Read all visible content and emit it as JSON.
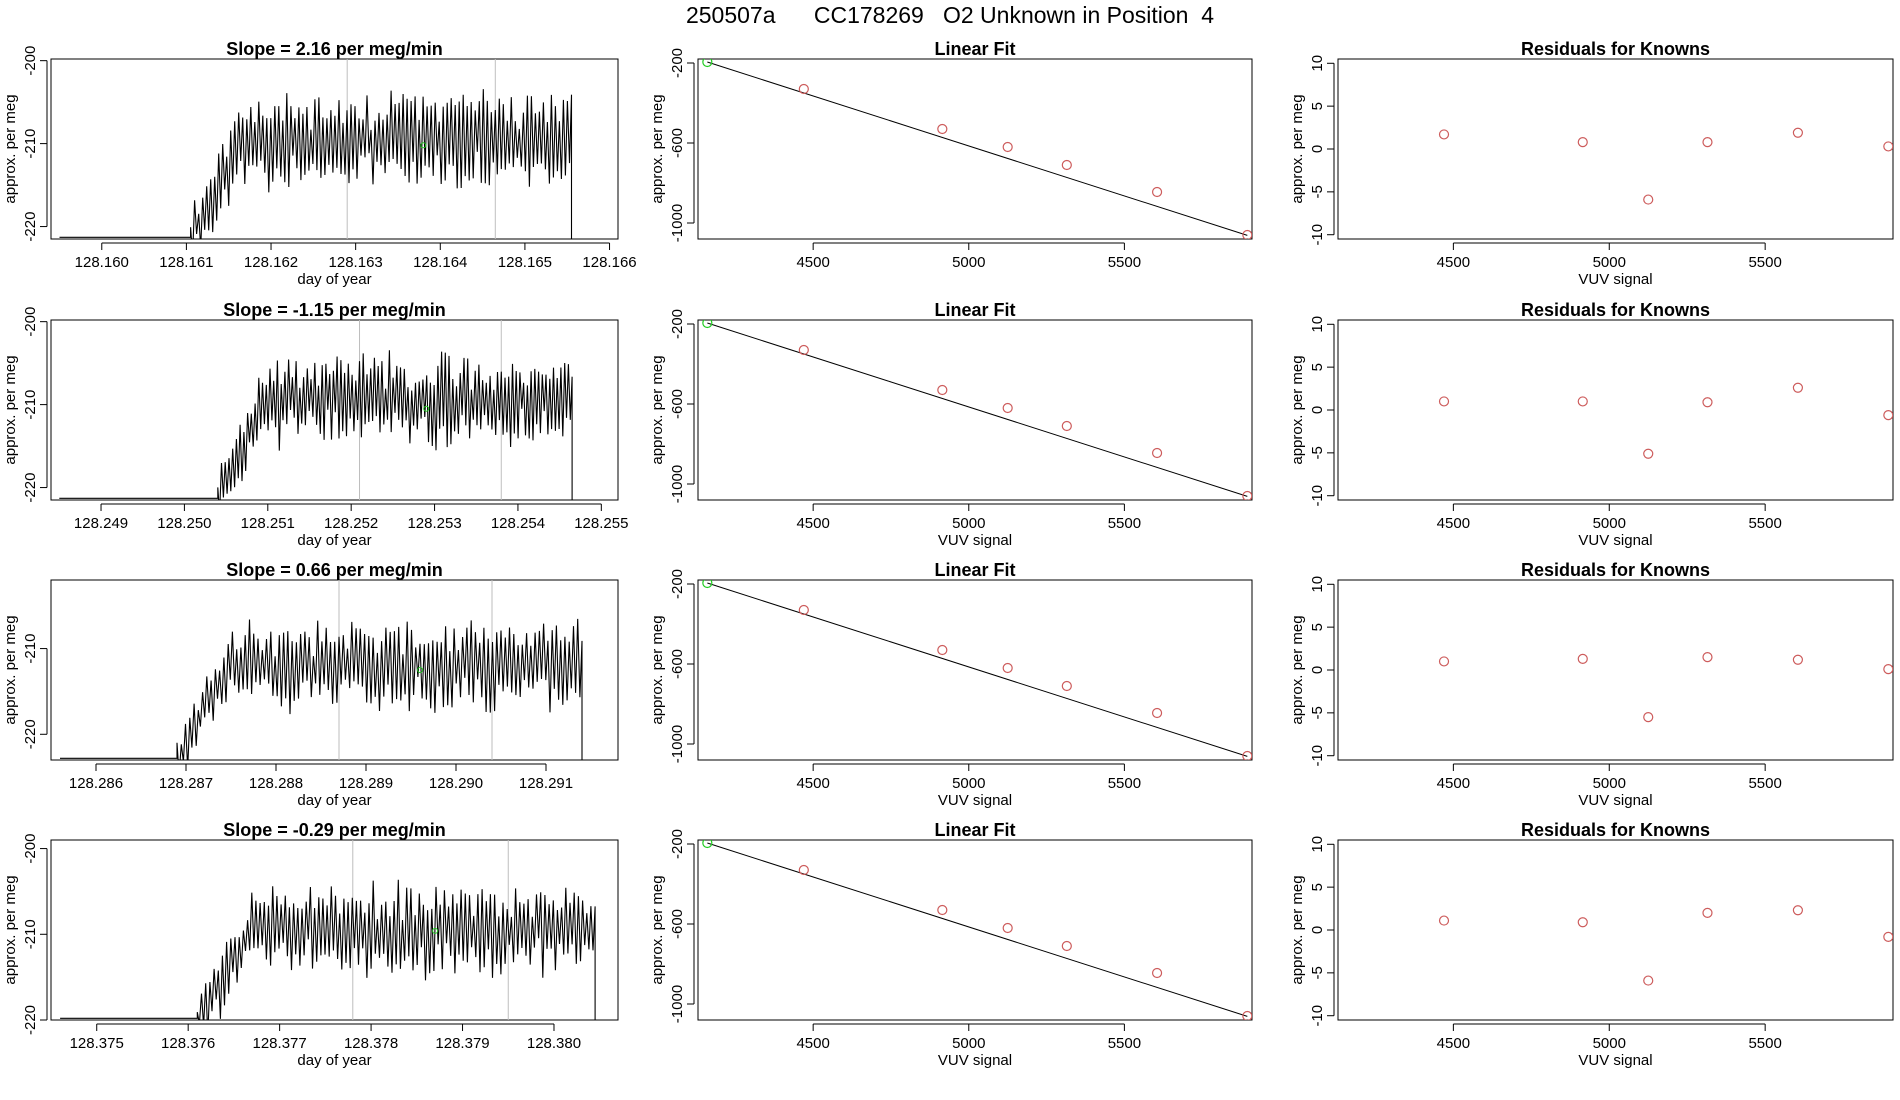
{
  "figure": {
    "title": "250507a      CC178269   O2 Unknown in Position  4"
  },
  "colors": {
    "trace": "#000000",
    "gray_line": "#bebebe",
    "known_point": "#cd5c5c",
    "green_point": "#22cc22",
    "axis": "#000000"
  },
  "chart_data": [
    {
      "type": "line",
      "row": 0,
      "col": 0,
      "title": "Slope =  2.16  per meg/min",
      "xlabel": "day of year",
      "ylabel": "approx. per meg",
      "xlim": [
        128.1594,
        128.1661
      ],
      "ylim": [
        -221.5,
        -199.8
      ],
      "xticks": [
        "128.160",
        "128.161",
        "128.162",
        "128.163",
        "128.164",
        "128.165",
        "128.166"
      ],
      "yticks": [
        "-200",
        "-210",
        "-220"
      ],
      "trace": {
        "x_start": 128.1595,
        "x_flat_end": 128.16105,
        "x_end": 128.16555,
        "flat_value": -221.3,
        "mean": -209.5,
        "amplitude": 5.5,
        "seed": 11
      },
      "vlines": [
        128.1629,
        128.16465
      ],
      "green_point": {
        "x": 128.1638,
        "y": -210.2
      }
    },
    {
      "type": "scatter",
      "row": 0,
      "col": 1,
      "title": "Linear Fit",
      "xlabel": "",
      "ylabel": "approx. per meg",
      "xlim": [
        4130,
        5910
      ],
      "ylim": [
        -1080,
        -180
      ],
      "xticks": [
        "4500",
        "5000",
        "5500"
      ],
      "yticks": [
        "-200",
        "-600",
        "-1000"
      ],
      "known_points": [
        [
          4470,
          -330
        ],
        [
          4915,
          -530
        ],
        [
          5125,
          -620
        ],
        [
          5315,
          -710
        ],
        [
          5605,
          -845
        ],
        [
          5895,
          -1060
        ]
      ],
      "green_point": [
        4160,
        -195
      ],
      "fit_line": [
        [
          4160,
          -195
        ],
        [
          5895,
          -1062
        ]
      ]
    },
    {
      "type": "scatter",
      "row": 0,
      "col": 2,
      "title": "Residuals for Knowns",
      "xlabel": "VUV signal",
      "ylabel": "approx. per meg",
      "xlim": [
        4130,
        5910
      ],
      "ylim": [
        -10.5,
        10.5
      ],
      "xticks": [
        "4500",
        "5000",
        "5500"
      ],
      "yticks": [
        "10",
        "5",
        "0",
        "-5",
        "-10"
      ],
      "points": [
        [
          4470,
          1.7
        ],
        [
          4915,
          0.8
        ],
        [
          5125,
          -5.9
        ],
        [
          5315,
          0.8
        ],
        [
          5605,
          1.9
        ],
        [
          5895,
          0.3
        ]
      ]
    },
    {
      "type": "line",
      "row": 1,
      "col": 0,
      "title": "Slope =  -1.15  per meg/min",
      "xlabel": "day of year",
      "ylabel": "approx. per meg",
      "xlim": [
        128.2484,
        128.2552
      ],
      "ylim": [
        -221.5,
        -199.8
      ],
      "xticks": [
        "128.249",
        "128.250",
        "128.251",
        "128.252",
        "128.253",
        "128.254",
        "128.255"
      ],
      "yticks": [
        "-200",
        "-210",
        "-220"
      ],
      "trace": {
        "x_start": 128.2485,
        "x_flat_end": 128.2504,
        "x_end": 128.25465,
        "flat_value": -221.3,
        "mean": -209.5,
        "amplitude": 5.2,
        "seed": 23
      },
      "vlines": [
        128.2521,
        128.2538
      ],
      "green_point": {
        "x": 128.2529,
        "y": -210.5
      }
    },
    {
      "type": "scatter",
      "row": 1,
      "col": 1,
      "title": "Linear Fit",
      "xlabel": "VUV signal",
      "ylabel": "approx. per meg",
      "xlim": [
        4130,
        5910
      ],
      "ylim": [
        -1080,
        -180
      ],
      "xticks": [
        "4500",
        "5000",
        "5500"
      ],
      "yticks": [
        "-200",
        "-600",
        "-1000"
      ],
      "known_points": [
        [
          4470,
          -330
        ],
        [
          4915,
          -530
        ],
        [
          5125,
          -620
        ],
        [
          5315,
          -710
        ],
        [
          5605,
          -845
        ],
        [
          5895,
          -1060
        ]
      ],
      "green_point": [
        4160,
        -195
      ],
      "fit_line": [
        [
          4160,
          -195
        ],
        [
          5895,
          -1062
        ]
      ]
    },
    {
      "type": "scatter",
      "row": 1,
      "col": 2,
      "title": "Residuals for Knowns",
      "xlabel": "VUV signal",
      "ylabel": "approx. per meg",
      "xlim": [
        4130,
        5910
      ],
      "ylim": [
        -10.5,
        10.5
      ],
      "xticks": [
        "4500",
        "5000",
        "5500"
      ],
      "yticks": [
        "10",
        "5",
        "0",
        "-5",
        "-10"
      ],
      "points": [
        [
          4470,
          1.0
        ],
        [
          4915,
          1.0
        ],
        [
          5125,
          -5.1
        ],
        [
          5315,
          0.9
        ],
        [
          5605,
          2.6
        ],
        [
          5895,
          -0.6
        ]
      ]
    },
    {
      "type": "line",
      "row": 2,
      "col": 0,
      "title": "Slope =  0.66  per meg/min",
      "xlabel": "day of year",
      "ylabel": "approx. per meg",
      "xlim": [
        128.2855,
        128.2918
      ],
      "ylim": [
        -223,
        -202
      ],
      "xticks": [
        "128.286",
        "128.287",
        "128.288",
        "128.289",
        "128.290",
        "128.291"
      ],
      "yticks": [
        "-210",
        "-220"
      ],
      "trace": {
        "x_start": 128.2856,
        "x_flat_end": 128.2869,
        "x_end": 128.2914,
        "flat_value": -222.8,
        "mean": -212,
        "amplitude": 5.0,
        "seed": 37
      },
      "vlines": [
        128.2887,
        128.2904
      ],
      "green_point": {
        "x": 128.2896,
        "y": -212.5
      }
    },
    {
      "type": "scatter",
      "row": 2,
      "col": 1,
      "title": "Linear Fit",
      "xlabel": "VUV signal",
      "ylabel": "approx. per meg",
      "xlim": [
        4130,
        5910
      ],
      "ylim": [
        -1080,
        -180
      ],
      "xticks": [
        "4500",
        "5000",
        "5500"
      ],
      "yticks": [
        "-200",
        "-600",
        "-1000"
      ],
      "known_points": [
        [
          4470,
          -330
        ],
        [
          4915,
          -530
        ],
        [
          5125,
          -620
        ],
        [
          5315,
          -710
        ],
        [
          5605,
          -845
        ],
        [
          5895,
          -1060
        ]
      ],
      "green_point": [
        4160,
        -195
      ],
      "fit_line": [
        [
          4160,
          -195
        ],
        [
          5895,
          -1062
        ]
      ]
    },
    {
      "type": "scatter",
      "row": 2,
      "col": 2,
      "title": "Residuals for Knowns",
      "xlabel": "VUV signal",
      "ylabel": "approx. per meg",
      "xlim": [
        4130,
        5910
      ],
      "ylim": [
        -10.5,
        10.5
      ],
      "xticks": [
        "4500",
        "5000",
        "5500"
      ],
      "yticks": [
        "10",
        "5",
        "0",
        "-5",
        "-10"
      ],
      "points": [
        [
          4470,
          1.0
        ],
        [
          4915,
          1.3
        ],
        [
          5125,
          -5.5
        ],
        [
          5315,
          1.5
        ],
        [
          5605,
          1.2
        ],
        [
          5895,
          0.1
        ]
      ]
    },
    {
      "type": "line",
      "row": 3,
      "col": 0,
      "title": "Slope =  -0.29  per meg/min",
      "xlabel": "day of year",
      "ylabel": "approx. per meg",
      "xlim": [
        128.3745,
        128.3807
      ],
      "ylim": [
        -220,
        -199
      ],
      "xticks": [
        "128.375",
        "128.376",
        "128.377",
        "128.378",
        "128.379",
        "128.380"
      ],
      "yticks": [
        "-200",
        "-210",
        "-220"
      ],
      "trace": {
        "x_start": 128.3746,
        "x_flat_end": 128.3761,
        "x_end": 128.38045,
        "flat_value": -219.8,
        "mean": -209.5,
        "amplitude": 5.0,
        "seed": 53
      },
      "vlines": [
        128.3778,
        128.3795
      ],
      "green_point": {
        "x": 128.3787,
        "y": -209.6
      }
    },
    {
      "type": "scatter",
      "row": 3,
      "col": 1,
      "title": "Linear Fit",
      "xlabel": "VUV signal",
      "ylabel": "approx. per meg",
      "xlim": [
        4130,
        5910
      ],
      "ylim": [
        -1080,
        -180
      ],
      "xticks": [
        "4500",
        "5000",
        "5500"
      ],
      "yticks": [
        "-200",
        "-600",
        "-1000"
      ],
      "known_points": [
        [
          4470,
          -330
        ],
        [
          4915,
          -530
        ],
        [
          5125,
          -620
        ],
        [
          5315,
          -710
        ],
        [
          5605,
          -845
        ],
        [
          5895,
          -1060
        ]
      ],
      "green_point": [
        4160,
        -195
      ],
      "fit_line": [
        [
          4160,
          -195
        ],
        [
          5895,
          -1062
        ]
      ]
    },
    {
      "type": "scatter",
      "row": 3,
      "col": 2,
      "title": "Residuals for Knowns",
      "xlabel": "VUV signal",
      "ylabel": "approx. per meg",
      "xlim": [
        4130,
        5910
      ],
      "ylim": [
        -10.5,
        10.5
      ],
      "xticks": [
        "4500",
        "5000",
        "5500"
      ],
      "yticks": [
        "10",
        "5",
        "0",
        "-5",
        "-10"
      ],
      "points": [
        [
          4470,
          1.1
        ],
        [
          4915,
          0.9
        ],
        [
          5125,
          -5.9
        ],
        [
          5315,
          2.0
        ],
        [
          5605,
          2.3
        ],
        [
          5895,
          -0.8
        ]
      ]
    }
  ]
}
